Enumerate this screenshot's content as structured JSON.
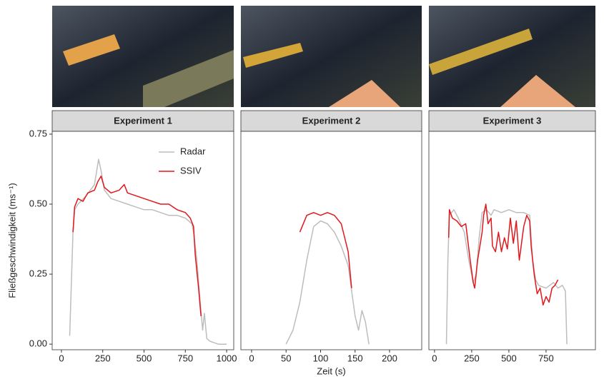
{
  "chart_data": [
    {
      "type": "line",
      "title": "Experiment 1",
      "ylabel": "Fließgeschwindigkeit (ms⁻¹)",
      "xlim": [
        -56,
        1043
      ],
      "xticks": [
        0,
        250,
        500,
        750,
        1000
      ],
      "ylim": [
        -0.02,
        0.76
      ],
      "yticks": [
        {
          "value": 0,
          "label": "0.00"
        },
        {
          "value": 0.25,
          "label": "0.25"
        },
        {
          "value": 0.5,
          "label": "0.50"
        },
        {
          "value": 0.75,
          "label": "0.75"
        }
      ],
      "legend": "top-right",
      "series": [
        {
          "name": "Radar",
          "color": "#bdbdbd",
          "x": [
            50,
            70,
            80,
            100,
            150,
            200,
            225,
            240,
            260,
            300,
            350,
            400,
            450,
            500,
            550,
            600,
            650,
            700,
            750,
            790,
            800,
            820,
            840,
            855,
            865,
            880,
            900,
            950,
            1000
          ],
          "values": [
            0.03,
            0.4,
            0.48,
            0.5,
            0.53,
            0.57,
            0.66,
            0.62,
            0.55,
            0.52,
            0.51,
            0.5,
            0.49,
            0.48,
            0.48,
            0.47,
            0.46,
            0.46,
            0.45,
            0.43,
            0.4,
            0.3,
            0.15,
            0.05,
            0.11,
            0.02,
            0.01,
            0.0,
            0.0
          ]
        },
        {
          "name": "SSIV",
          "color": "#e0181b",
          "x": [
            70,
            80,
            100,
            130,
            160,
            200,
            220,
            240,
            260,
            300,
            350,
            380,
            400,
            450,
            500,
            550,
            600,
            650,
            700,
            750,
            780,
            800,
            810,
            830,
            845
          ],
          "values": [
            0.4,
            0.49,
            0.52,
            0.51,
            0.54,
            0.55,
            0.58,
            0.6,
            0.56,
            0.54,
            0.55,
            0.57,
            0.54,
            0.53,
            0.52,
            0.51,
            0.5,
            0.5,
            0.48,
            0.47,
            0.45,
            0.42,
            0.32,
            0.2,
            0.1
          ]
        }
      ]
    },
    {
      "type": "line",
      "title": "Experiment 2",
      "xlabel": "Zeit (s)",
      "xlim": [
        -15.5,
        246.6
      ],
      "xticks": [
        0,
        50,
        100,
        150,
        200
      ],
      "ylim": [
        -0.02,
        0.76
      ],
      "series": [
        {
          "color": "#bdbdbd",
          "x": [
            50,
            60,
            70,
            80,
            90,
            100,
            110,
            120,
            130,
            140,
            150,
            155,
            160,
            165,
            170
          ],
          "values": [
            0,
            0.05,
            0.15,
            0.3,
            0.42,
            0.44,
            0.43,
            0.4,
            0.35,
            0.28,
            0.1,
            0.05,
            0.12,
            0.08,
            0.0
          ]
        },
        {
          "color": "#e0181b",
          "x": [
            70,
            80,
            90,
            100,
            110,
            120,
            130,
            140,
            145
          ],
          "values": [
            0.4,
            0.46,
            0.47,
            0.46,
            0.47,
            0.46,
            0.43,
            0.33,
            0.2
          ]
        }
      ]
    },
    {
      "type": "line",
      "title": "Experiment 3",
      "xlim": [
        -38,
        1082
      ],
      "xticks": [
        0,
        250,
        500,
        750
      ],
      "ylim": [
        -0.02,
        0.76
      ],
      "series": [
        {
          "color": "#bdbdbd",
          "x": [
            80,
            90,
            100,
            130,
            160,
            200,
            230,
            260,
            280,
            300,
            320,
            350,
            380,
            400,
            450,
            500,
            550,
            600,
            640,
            660,
            680,
            700,
            750,
            800,
            830,
            860,
            880,
            890
          ],
          "values": [
            0,
            0.3,
            0.46,
            0.48,
            0.45,
            0.4,
            0.3,
            0.22,
            0.25,
            0.38,
            0.47,
            0.48,
            0.46,
            0.48,
            0.47,
            0.48,
            0.47,
            0.47,
            0.46,
            0.3,
            0.23,
            0.21,
            0.2,
            0.22,
            0.2,
            0.21,
            0.19,
            0.0
          ]
        },
        {
          "color": "#e0181b",
          "x": [
            95,
            100,
            120,
            150,
            180,
            210,
            240,
            260,
            270,
            290,
            320,
            330,
            345,
            360,
            380,
            390,
            410,
            430,
            450,
            470,
            490,
            510,
            530,
            550,
            570,
            600,
            620,
            640,
            650,
            670,
            690,
            710,
            730,
            750,
            770,
            790,
            810,
            830
          ],
          "values": [
            0.38,
            0.48,
            0.45,
            0.44,
            0.42,
            0.43,
            0.3,
            0.22,
            0.2,
            0.3,
            0.4,
            0.46,
            0.5,
            0.43,
            0.45,
            0.35,
            0.33,
            0.4,
            0.33,
            0.38,
            0.34,
            0.45,
            0.36,
            0.44,
            0.3,
            0.42,
            0.46,
            0.44,
            0.35,
            0.25,
            0.18,
            0.2,
            0.14,
            0.17,
            0.15,
            0.2,
            0.21,
            0.23
          ]
        }
      ]
    }
  ]
}
